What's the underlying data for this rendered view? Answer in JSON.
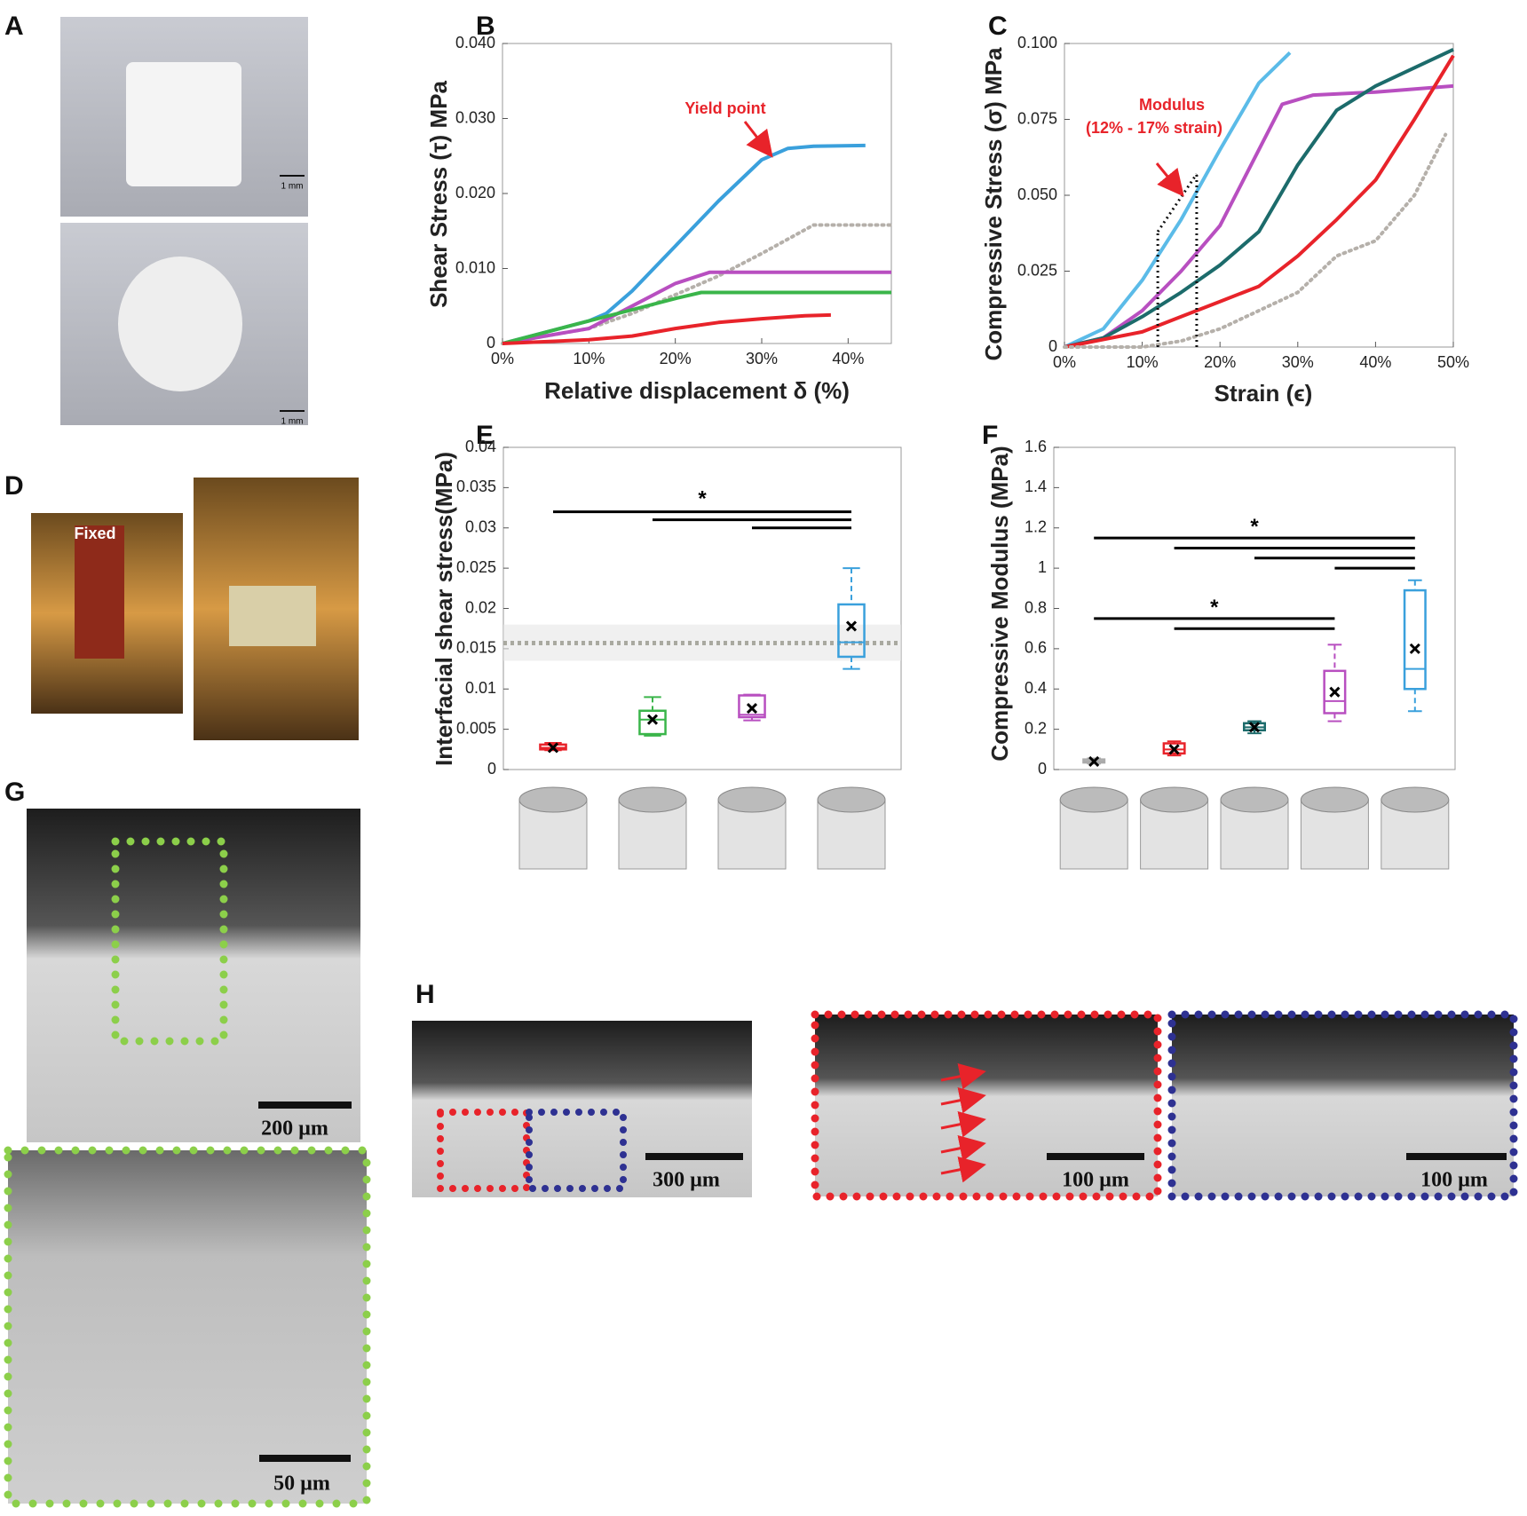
{
  "panel_labels": [
    "A",
    "B",
    "C",
    "D",
    "E",
    "F",
    "G",
    "H"
  ],
  "fixed_label": "Fixed",
  "scale_bars": [
    "1 mm",
    "1 mm",
    "200 µm",
    "50 µm",
    "300 µm",
    "100 µm",
    "100 µm"
  ],
  "chart_data": [
    {
      "type": "line",
      "ylabel": "Shear Stress (τ) MPa",
      "xlabel": "Relative displacement δ (%)",
      "xlim": [
        0,
        45
      ],
      "ylim": [
        0,
        0.04
      ],
      "xticks": [
        {
          "value": 0,
          "label": "0%"
        },
        {
          "value": 10,
          "label": "10%"
        },
        {
          "value": 20,
          "label": "20%"
        },
        {
          "value": 30,
          "label": "30%"
        },
        {
          "value": 40,
          "label": "40%"
        }
      ],
      "yticks": [
        0,
        {
          "value": 0.01,
          "label": "0.010"
        },
        {
          "value": 0.02,
          "label": "0.020"
        },
        {
          "value": 0.03,
          "label": "0.030"
        },
        {
          "value": 0.04,
          "label": "0.040"
        }
      ],
      "series": [
        {
          "color": "#3aa0dc",
          "x": [
            0,
            5,
            10,
            12,
            15,
            20,
            25,
            30,
            33,
            36,
            42
          ],
          "values": [
            0,
            0.0015,
            0.003,
            0.004,
            0.007,
            0.013,
            0.019,
            0.0245,
            0.026,
            0.0263,
            0.0264
          ]
        },
        {
          "color": "#b5b0aa",
          "dotted": true,
          "x": [
            0,
            10,
            15,
            20,
            25,
            30,
            36,
            45
          ],
          "values": [
            0,
            0.002,
            0.004,
            0.0065,
            0.009,
            0.012,
            0.0158,
            0.0158
          ]
        },
        {
          "color": "#b84fc0",
          "x": [
            0,
            10,
            15,
            20,
            24,
            30,
            45
          ],
          "values": [
            0,
            0.002,
            0.005,
            0.008,
            0.0095,
            0.0095,
            0.0095
          ]
        },
        {
          "color": "#3ab54a",
          "x": [
            0,
            10,
            15,
            20,
            23,
            30,
            45
          ],
          "values": [
            0,
            0.003,
            0.0045,
            0.006,
            0.0068,
            0.0068,
            0.0068
          ]
        },
        {
          "color": "#e8232a",
          "x": [
            0,
            10,
            15,
            20,
            25,
            30,
            35,
            38
          ],
          "values": [
            0,
            0.0005,
            0.001,
            0.002,
            0.0028,
            0.0033,
            0.0037,
            0.0038
          ]
        }
      ],
      "annotations": [
        {
          "text": "Yield point",
          "color": "#e8232a"
        }
      ]
    },
    {
      "type": "line",
      "ylabel": "Compressive Stress (σ) MPa",
      "xlabel": "Strain (ϵ)",
      "xlim": [
        0,
        50
      ],
      "ylim": [
        0,
        0.1
      ],
      "xticks": [
        {
          "value": 0,
          "label": "0%"
        },
        {
          "value": 10,
          "label": "10%"
        },
        {
          "value": 20,
          "label": "20%"
        },
        {
          "value": 30,
          "label": "30%"
        },
        {
          "value": 40,
          "label": "40%"
        },
        {
          "value": 50,
          "label": "50%"
        }
      ],
      "yticks": [
        0,
        0.025,
        {
          "value": 0.05,
          "label": "0.050"
        },
        0.075,
        {
          "value": 0.1,
          "label": "0.100"
        }
      ],
      "series": [
        {
          "color": "#5bbbe8",
          "x": [
            0,
            5,
            10,
            15,
            20,
            25,
            29
          ],
          "values": [
            0,
            0.006,
            0.022,
            0.042,
            0.065,
            0.087,
            0.097
          ]
        },
        {
          "color": "#b84fc0",
          "x": [
            0,
            5,
            10,
            15,
            20,
            25,
            28,
            32,
            40,
            50
          ],
          "values": [
            0,
            0.003,
            0.012,
            0.025,
            0.04,
            0.065,
            0.08,
            0.083,
            0.084,
            0.086
          ]
        },
        {
          "color": "#1c6b6b",
          "x": [
            0,
            5,
            10,
            15,
            20,
            25,
            30,
            35,
            40,
            50
          ],
          "values": [
            0,
            0.003,
            0.01,
            0.018,
            0.027,
            0.038,
            0.06,
            0.078,
            0.086,
            0.098
          ]
        },
        {
          "color": "#e8232a",
          "x": [
            0,
            10,
            15,
            20,
            25,
            30,
            35,
            40,
            45,
            50
          ],
          "values": [
            0,
            0.005,
            0.01,
            0.015,
            0.02,
            0.03,
            0.042,
            0.055,
            0.075,
            0.096
          ]
        },
        {
          "color": "#b5b0aa",
          "dotted": true,
          "x": [
            0,
            10,
            15,
            20,
            25,
            30,
            35,
            40,
            45,
            49
          ],
          "values": [
            0,
            0,
            0.002,
            0.006,
            0.012,
            0.018,
            0.03,
            0.035,
            0.05,
            0.07
          ]
        }
      ],
      "reference_lines": [
        {
          "x": 12,
          "y": 0.038
        },
        {
          "x": 17,
          "y": 0.057
        }
      ],
      "annotations": [
        {
          "text": "Modulus",
          "color": "#e8232a"
        },
        {
          "text": "(12% - 17% strain)",
          "color": "#e8232a"
        }
      ]
    },
    {
      "type": "box",
      "ylabel": "Interfacial shear stress(MPa)",
      "categories": [
        null,
        null,
        null,
        null
      ],
      "ylim": [
        0,
        0.04
      ],
      "yticks": [
        0,
        0.005,
        0.01,
        0.015,
        0.02,
        0.025,
        0.03,
        0.035,
        0.04
      ],
      "boxes": [
        {
          "color": "#e8232a",
          "min": 0.0024,
          "q1": 0.0025,
          "median": 0.0027,
          "q3": 0.0031,
          "max": 0.0033,
          "mean": 0.0027
        },
        {
          "color": "#3ab54a",
          "min": 0.0042,
          "q1": 0.0044,
          "median": 0.0062,
          "q3": 0.0073,
          "max": 0.009,
          "mean": 0.0062
        },
        {
          "color": "#b84fc0",
          "min": 0.0061,
          "q1": 0.0065,
          "median": 0.0068,
          "q3": 0.0092,
          "max": 0.0093,
          "mean": 0.0076
        },
        {
          "color": "#3aa0dc",
          "min": 0.0125,
          "q1": 0.014,
          "median": 0.0158,
          "q3": 0.0205,
          "max": 0.025,
          "mean": 0.0178
        }
      ],
      "reference": {
        "value": 0.0157,
        "low": 0.0135,
        "high": 0.018
      },
      "significance": [
        {
          "from": 0,
          "to": 3,
          "y": 0.032
        },
        {
          "from": 1,
          "to": 3,
          "y": 0.031
        },
        {
          "from": 2,
          "to": 3,
          "y": 0.03
        }
      ],
      "stars": [
        {
          "label": "*",
          "over": 0,
          "y": 0.0335
        }
      ]
    },
    {
      "type": "box",
      "ylabel": "Compressive Modulus (MPa)",
      "categories": [
        null,
        null,
        null,
        null,
        null
      ],
      "ylim": [
        0,
        1.6
      ],
      "yticks": [
        0,
        0.2,
        0.4,
        0.6,
        0.8,
        1,
        1.2,
        1.4,
        1.6
      ],
      "boxes": [
        {
          "color": "#aaaaaa",
          "min": 0.03,
          "q1": 0.035,
          "median": 0.04,
          "q3": 0.05,
          "max": 0.055,
          "mean": 0.04
        },
        {
          "color": "#e8232a",
          "min": 0.07,
          "q1": 0.08,
          "median": 0.1,
          "q3": 0.13,
          "max": 0.14,
          "mean": 0.1
        },
        {
          "color": "#1c6b6b",
          "min": 0.18,
          "q1": 0.195,
          "median": 0.21,
          "q3": 0.23,
          "max": 0.24,
          "mean": 0.21
        },
        {
          "color": "#b84fc0",
          "min": 0.24,
          "q1": 0.28,
          "median": 0.34,
          "q3": 0.49,
          "max": 0.62,
          "mean": 0.385
        },
        {
          "color": "#3aa0dc",
          "min": 0.29,
          "q1": 0.4,
          "median": 0.5,
          "q3": 0.89,
          "max": 0.94,
          "mean": 0.6
        }
      ],
      "significance": [
        {
          "from": 0,
          "to": 4,
          "y": 1.15
        },
        {
          "from": 1,
          "to": 4,
          "y": 1.1
        },
        {
          "from": 2,
          "to": 4,
          "y": 1.05
        },
        {
          "from": 3,
          "to": 4,
          "y": 1.0
        },
        {
          "from": 0,
          "to": 3,
          "y": 0.75
        },
        {
          "from": 1,
          "to": 3,
          "y": 0.7
        }
      ],
      "stars": [
        {
          "label": "*",
          "over": 0,
          "y": 1.2
        },
        {
          "label": "*",
          "over": 4,
          "y": 0.8
        }
      ]
    }
  ]
}
